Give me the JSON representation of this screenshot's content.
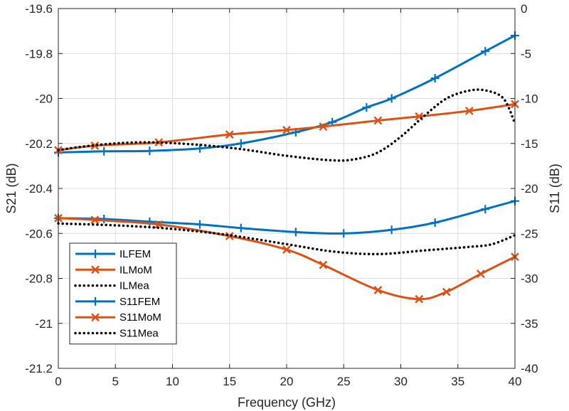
{
  "chart_data": {
    "type": "line",
    "xlabel": "Frequency (GHz)",
    "ylabel_left": "S21 (dB)",
    "ylabel_right": "S11 (dB)",
    "xlim": [
      0,
      40
    ],
    "ylim_left": [
      -21.2,
      -19.6
    ],
    "ylim_right": [
      -40,
      0
    ],
    "x_ticks": [
      "0",
      "5",
      "10",
      "15",
      "20",
      "25",
      "30",
      "35",
      "40"
    ],
    "y_ticks_left": [
      "-19.6",
      "-19.8",
      "-20",
      "-20.2",
      "-20.4",
      "-20.6",
      "-20.8",
      "-21",
      "-21.2"
    ],
    "y_ticks_right": [
      "0",
      "-5",
      "-10",
      "-15",
      "-20",
      "-25",
      "-30",
      "-35",
      "-40"
    ],
    "grid": true,
    "legend_position": "bottom-left",
    "colors": {
      "fem": "#0072BD",
      "mom": "#D95319",
      "mea": "#000000"
    },
    "series": [
      {
        "name": "ILFEM",
        "axis": "left",
        "color": "#0072BD",
        "style": "solid",
        "marker": "plus",
        "x": [
          0,
          4,
          8,
          12.4,
          16,
          20.8,
          24,
          27,
          29.2,
          33,
          37.4,
          40
        ],
        "y": [
          -20.24,
          -20.235,
          -20.233,
          -20.222,
          -20.2,
          -20.15,
          -20.105,
          -20.04,
          -20.0,
          -19.91,
          -19.79,
          -19.72
        ]
      },
      {
        "name": "ILMoM",
        "axis": "left",
        "color": "#D95319",
        "style": "solid",
        "marker": "x",
        "x": [
          0,
          3.2,
          8.8,
          15,
          20,
          23.2,
          28,
          31.6,
          36,
          40
        ],
        "y": [
          -20.23,
          -20.21,
          -20.195,
          -20.16,
          -20.14,
          -20.125,
          -20.098,
          -20.08,
          -20.055,
          -20.025
        ]
      },
      {
        "name": "ILMea",
        "axis": "left",
        "color": "#000000",
        "style": "dotted",
        "x": [
          0,
          2,
          5,
          8,
          12,
          16,
          20,
          24,
          26,
          28,
          30,
          32,
          34,
          36,
          37.5,
          39,
          40
        ],
        "y": [
          -20.23,
          -20.215,
          -20.2,
          -20.195,
          -20.205,
          -20.225,
          -20.255,
          -20.275,
          -20.27,
          -20.24,
          -20.17,
          -20.08,
          -20.0,
          -19.965,
          -19.965,
          -20.0,
          -20.11
        ]
      },
      {
        "name": "S11FEM",
        "axis": "right",
        "color": "#0072BD",
        "style": "solid",
        "marker": "plus",
        "x": [
          0,
          4,
          8,
          12.4,
          16,
          20.8,
          25,
          29.2,
          33,
          37.4,
          40
        ],
        "y": [
          -23.3,
          -23.4,
          -23.7,
          -24.0,
          -24.4,
          -24.85,
          -25.0,
          -24.6,
          -23.8,
          -22.3,
          -21.4
        ]
      },
      {
        "name": "S11MoM",
        "axis": "right",
        "color": "#D95319",
        "style": "solid",
        "marker": "x",
        "x": [
          0,
          3.2,
          8.8,
          15,
          20,
          23.2,
          28,
          31.6,
          34,
          37,
          40
        ],
        "y": [
          -23.3,
          -23.5,
          -24.0,
          -25.3,
          -26.8,
          -28.5,
          -31.3,
          -32.3,
          -31.5,
          -29.5,
          -27.6
        ]
      },
      {
        "name": "S11Mea",
        "axis": "right",
        "color": "#000000",
        "style": "dotted",
        "x": [
          0,
          5,
          10,
          15,
          20,
          24,
          28,
          32,
          36,
          38,
          40
        ],
        "y": [
          -23.9,
          -24.1,
          -24.5,
          -25.2,
          -26.2,
          -27.0,
          -27.3,
          -26.9,
          -26.5,
          -26.2,
          -25.2
        ]
      }
    ]
  }
}
